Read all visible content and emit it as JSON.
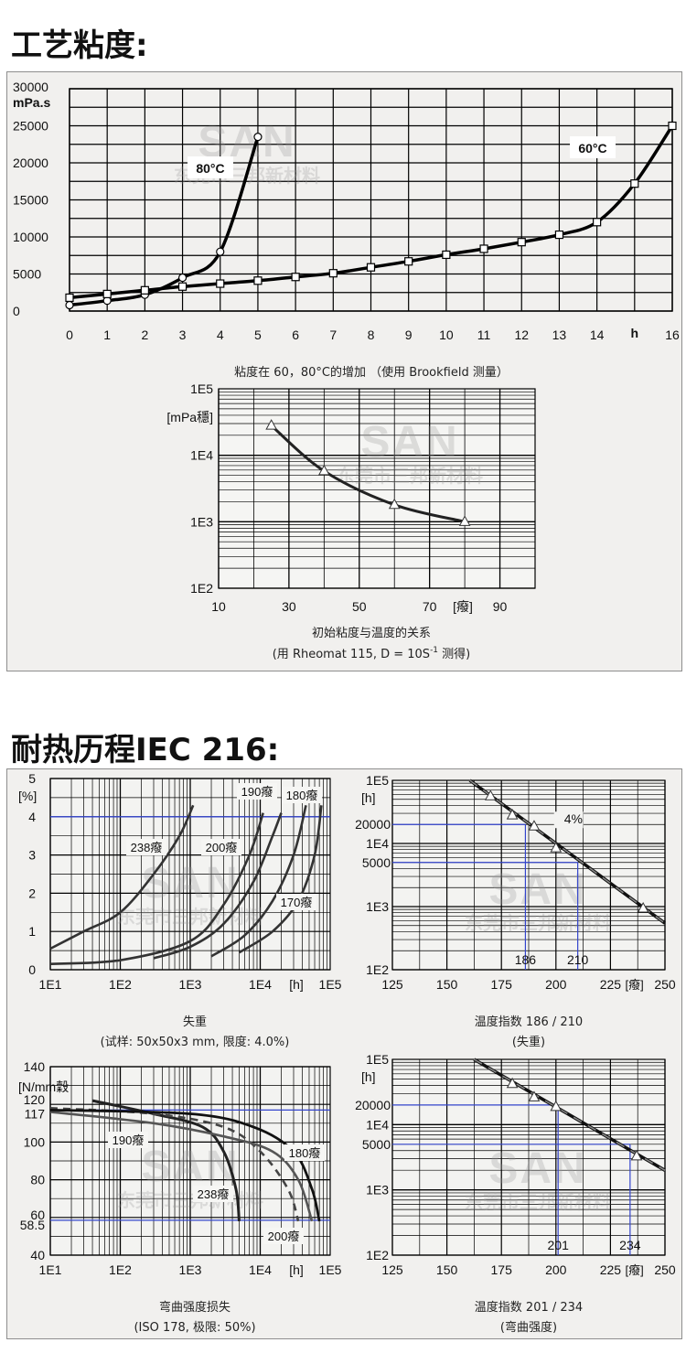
{
  "sections": {
    "process_viscosity_heading": "工艺粘度:",
    "heat_aging_heading": "耐热历程IEC 216:"
  },
  "watermark": {
    "logo": "SAN",
    "company": "东莞市三邦新材料"
  },
  "chart_data": [
    {
      "id": "viscosity_vs_time",
      "type": "line",
      "y_unit_label": "mPa.s",
      "x_unit_label": "h",
      "xlim": [
        0,
        16
      ],
      "ylim": [
        0,
        30000
      ],
      "x_ticks": [
        "0",
        "1",
        "2",
        "3",
        "4",
        "5",
        "6",
        "7",
        "8",
        "9",
        "10",
        "11",
        "12",
        "13",
        "14",
        "16"
      ],
      "y_ticks": [
        "30000",
        "25000",
        "20000",
        "15000",
        "10000",
        "5000",
        "0"
      ],
      "grid": true,
      "caption": "粘度在 60，80°C的增加 （使用 Brookfield 测量）",
      "series": [
        {
          "name": "80°C",
          "marker": "circle",
          "x": [
            0,
            1,
            2,
            3,
            4,
            5
          ],
          "y": [
            800,
            1400,
            2200,
            4500,
            8000,
            23500
          ]
        },
        {
          "name": "60°C",
          "marker": "square",
          "x": [
            0,
            1,
            2,
            3,
            4,
            5,
            6,
            7,
            8,
            9,
            10,
            11,
            12,
            13,
            14,
            15,
            16
          ],
          "y": [
            1800,
            2300,
            2800,
            3300,
            3700,
            4100,
            4600,
            5100,
            5900,
            6700,
            7600,
            8400,
            9300,
            10300,
            12000,
            17200,
            25000
          ]
        }
      ]
    },
    {
      "id": "initial_viscosity_vs_temperature",
      "type": "line",
      "y_scale": "log",
      "y_unit_label": "[mPa穩]",
      "x_unit_label": "[癈]",
      "xlim": [
        10,
        100
      ],
      "ylim": [
        100,
        100000
      ],
      "x_ticks": [
        "10",
        "30",
        "50",
        "70",
        "90"
      ],
      "y_ticks": [
        "1E5",
        "1E4",
        "1E3",
        "1E2"
      ],
      "grid": true,
      "caption_line1": "初始粘度与温度的关系",
      "caption_line2_prefix": "(用 Rheomat 115, D = 10S",
      "caption_line2_sup": "-1",
      "caption_line2_suffix": " 测得)",
      "series": [
        {
          "marker": "triangle",
          "x": [
            25,
            40,
            60,
            80
          ],
          "y": [
            28000,
            5800,
            1800,
            1000
          ]
        }
      ]
    },
    {
      "id": "weight_loss",
      "type": "line",
      "x_scale": "log",
      "y_unit_label": "[%]",
      "x_unit_label": "[h]",
      "xlim": [
        10,
        100000
      ],
      "ylim": [
        0,
        5
      ],
      "x_ticks": [
        "1E1",
        "1E2",
        "1E3",
        "1E4",
        "1E5"
      ],
      "y_ticks": [
        "5",
        "4",
        "3",
        "2",
        "1",
        "0"
      ],
      "limit": 4.0,
      "grid": true,
      "caption_line1": "失重",
      "caption_line2": "(试样: 50x50x3 mm, 限度: 4.0%)",
      "series": [
        {
          "name": "238癈",
          "x": [
            10,
            30,
            100,
            300,
            700,
            1100
          ],
          "y": [
            0.55,
            1.0,
            1.5,
            2.5,
            3.5,
            4.3
          ]
        },
        {
          "name": "200癈",
          "x": [
            10,
            100,
            1000,
            3000,
            7000,
            11000
          ],
          "y": [
            0.15,
            0.25,
            0.75,
            1.7,
            3.0,
            4.1
          ]
        },
        {
          "name": "190癈",
          "x": [
            300,
            1000,
            3000,
            8000,
            15000,
            20000
          ],
          "y": [
            0.3,
            0.6,
            1.2,
            2.3,
            3.5,
            4.1
          ]
        },
        {
          "name": "180癈",
          "x": [
            2000,
            6000,
            15000,
            30000,
            45000
          ],
          "y": [
            0.35,
            0.9,
            1.8,
            3.0,
            4.3
          ]
        },
        {
          "name": "170癈",
          "x": [
            5000,
            15000,
            35000,
            60000,
            75000
          ],
          "y": [
            0.45,
            1.0,
            1.8,
            3.0,
            4.3
          ]
        }
      ]
    },
    {
      "id": "temperature_index_weight_loss",
      "type": "line",
      "y_scale": "log",
      "y_unit_label": "[h]",
      "x_unit_label": "[癈]",
      "xlim": [
        125,
        250
      ],
      "ylim": [
        100,
        100000
      ],
      "x_ticks": [
        "125",
        "150",
        "175",
        "200",
        "225",
        "250"
      ],
      "y_ticks": [
        "1E5",
        "1E4",
        "1E3",
        "1E2"
      ],
      "ref_labels": [
        "20000",
        "5000"
      ],
      "ref_values": [
        20000,
        5000
      ],
      "index_labels": [
        "186",
        "210"
      ],
      "index_values": [
        186,
        210
      ],
      "annotation": "4%",
      "grid": true,
      "caption_line1": "温度指数 186 / 210",
      "caption_line2": "(失重)",
      "series": [
        {
          "marker": "triangle",
          "x": [
            170,
            180,
            190,
            200,
            240
          ],
          "y": [
            60000,
            30000,
            20000,
            9000,
            1000
          ]
        }
      ]
    },
    {
      "id": "flexural_strength_loss",
      "type": "line",
      "x_scale": "log",
      "y_unit_label": "[N/mm穀",
      "x_unit_label": "[h]",
      "xlim": [
        10,
        100000
      ],
      "ylim": [
        40,
        140
      ],
      "x_ticks": [
        "1E1",
        "1E2",
        "1E3",
        "1E4",
        "1E5"
      ],
      "y_ticks": [
        "140",
        "120",
        "117",
        "100",
        "80",
        "60",
        "58.5",
        "40"
      ],
      "ref_values": [
        117,
        58.5
      ],
      "grid": true,
      "caption_line1": "弯曲强度损失",
      "caption_line2": "(ISO 178, 极限: 50%)",
      "series": [
        {
          "name": "238癈",
          "x": [
            40,
            300,
            1500,
            3000,
            4500,
            5000
          ],
          "y": [
            122,
            115,
            108,
            95,
            75,
            58
          ]
        },
        {
          "name": "200癈",
          "x": [
            10,
            300,
            3000,
            10000,
            25000,
            35000
          ],
          "y": [
            118,
            115,
            108,
            95,
            75,
            58
          ]
        },
        {
          "name": "190癈",
          "x": [
            10,
            300,
            3000,
            15000,
            35000,
            55000
          ],
          "y": [
            116,
            110,
            103,
            95,
            80,
            58
          ]
        },
        {
          "name": "180癈",
          "x": [
            10,
            1000,
            8000,
            30000,
            55000,
            70000
          ],
          "y": [
            117,
            115,
            108,
            95,
            75,
            58
          ]
        }
      ]
    },
    {
      "id": "temperature_index_flexural",
      "type": "line",
      "y_scale": "log",
      "y_unit_label": "[h]",
      "x_unit_label": "[癈]",
      "xlim": [
        125,
        250
      ],
      "ylim": [
        100,
        100000
      ],
      "x_ticks": [
        "125",
        "150",
        "175",
        "200",
        "225",
        "250"
      ],
      "y_ticks": [
        "1E5",
        "1E4",
        "1E3",
        "1E2"
      ],
      "ref_labels": [
        "20000",
        "5000"
      ],
      "ref_values": [
        20000,
        5000
      ],
      "index_labels": [
        "201",
        "234"
      ],
      "index_values": [
        201,
        234
      ],
      "grid": true,
      "caption_line1": "温度指数 201 / 234",
      "caption_line2": "(弯曲强度)",
      "series": [
        {
          "marker": "triangle",
          "x": [
            180,
            190,
            200,
            237
          ],
          "y": [
            45000,
            28000,
            20000,
            3500
          ]
        }
      ]
    }
  ]
}
